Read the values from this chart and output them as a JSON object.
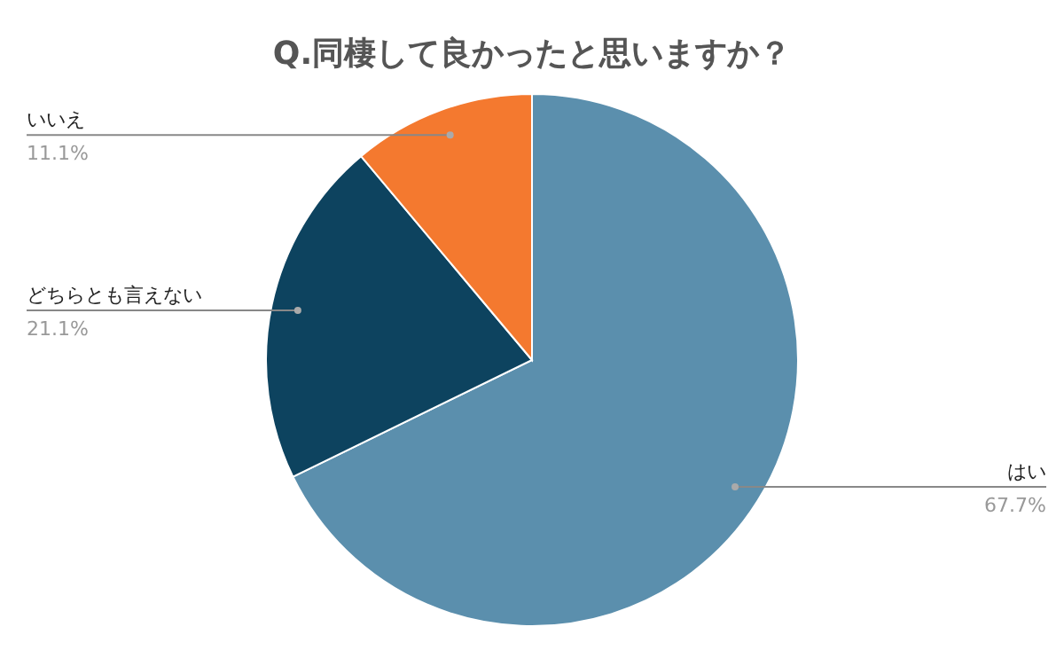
{
  "chart_data": {
    "type": "pie",
    "title": "Q.同棲して良かったと思いますか？",
    "categories": [
      "はい",
      "どちらとも言えない",
      "いいえ"
    ],
    "values": [
      67.7,
      21.1,
      11.1
    ],
    "value_labels": [
      "67.7%",
      "21.1%",
      "11.1%"
    ],
    "colors": [
      "#5b8fad",
      "#0d435f",
      "#f4792f"
    ]
  }
}
